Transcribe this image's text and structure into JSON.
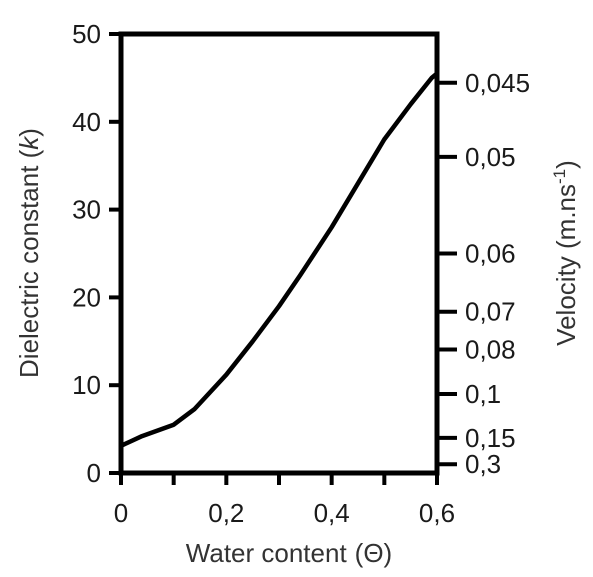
{
  "chart_data": {
    "type": "line",
    "xlabel_prefix": "Water content",
    "xlabel_symbol": "(Θ)",
    "ylabel_prefix": "Dielectric constant (",
    "ylabel_symbol": "k",
    "ylabel_suffix": ")",
    "y2label_prefix": "Velocity (m.ns",
    "y2label_sup": "-1",
    "y2label_suffix": ")",
    "xlim": [
      0,
      0.6
    ],
    "ylim": [
      0,
      50
    ],
    "x_ticks": [
      {
        "value": 0,
        "label": "0"
      },
      {
        "value": 0.1,
        "label": ""
      },
      {
        "value": 0.2,
        "label": "0,2"
      },
      {
        "value": 0.3,
        "label": ""
      },
      {
        "value": 0.4,
        "label": "0,4"
      },
      {
        "value": 0.5,
        "label": ""
      },
      {
        "value": 0.6,
        "label": "0,6"
      }
    ],
    "y_ticks": [
      {
        "value": 0,
        "label": "0"
      },
      {
        "value": 10,
        "label": "10"
      },
      {
        "value": 20,
        "label": "20"
      },
      {
        "value": 30,
        "label": "30"
      },
      {
        "value": 40,
        "label": "40"
      },
      {
        "value": 50,
        "label": "50"
      }
    ],
    "y2_ticks": [
      {
        "velocity": 0.045,
        "label": "0,045"
      },
      {
        "velocity": 0.05,
        "label": "0,05"
      },
      {
        "velocity": 0.06,
        "label": "0,06"
      },
      {
        "velocity": 0.07,
        "label": "0,07"
      },
      {
        "velocity": 0.08,
        "label": "0,08"
      },
      {
        "velocity": 0.1,
        "label": "0,1"
      },
      {
        "velocity": 0.15,
        "label": "0,15"
      },
      {
        "velocity": 0.3,
        "label": "0,3"
      }
    ],
    "series": [
      {
        "x": [
          0,
          0.04,
          0.1,
          0.14,
          0.2,
          0.25,
          0.3,
          0.34,
          0.4,
          0.45,
          0.5,
          0.55,
          0.59,
          0.6
        ],
        "y": [
          3.1,
          4.2,
          5.5,
          7.3,
          11.2,
          15.0,
          19.0,
          22.5,
          28.0,
          33.0,
          38.0,
          42.0,
          45.0,
          45.5
        ]
      }
    ]
  }
}
